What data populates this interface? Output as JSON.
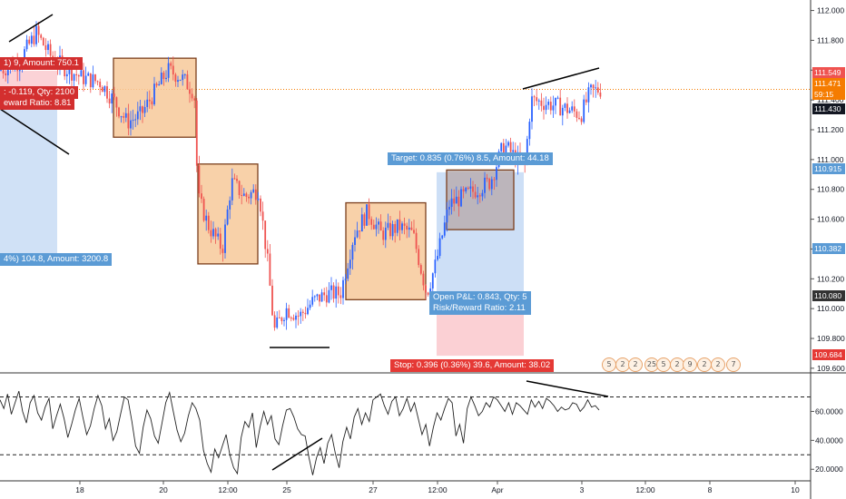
{
  "chart_data": [
    {
      "type": "candlestick",
      "symbol_context": "price panel",
      "y_axis_ticks": [
        "112.000",
        "111.800",
        "111.600",
        "111.400",
        "111.200",
        "111.000",
        "110.800",
        "110.600",
        "110.400",
        "110.200",
        "110.000",
        "109.800",
        "109.600"
      ],
      "ylim": [
        109.575,
        112.04
      ],
      "price_badges": [
        {
          "value": "111.549",
          "color": "#ef5350"
        },
        {
          "value": "111.471",
          "color": "#f57c00"
        },
        {
          "value": "59:15",
          "color": "#f57c00"
        },
        {
          "value": "111.430",
          "color": "#131722"
        },
        {
          "value": "110.915",
          "color": "#5b9bd5"
        },
        {
          "value": "110.382",
          "color": "#5b9bd5"
        },
        {
          "value": "110.080",
          "color": "#333333"
        },
        {
          "value": "109.684",
          "color": "#e53935"
        }
      ],
      "current_price_line": 111.471,
      "trade_labels": {
        "top_left_1": "1) 9, Amount: 750.1",
        "top_left_2": ": -0.119, Qty: 2100",
        "top_left_3": "eward Ratio: 8.81",
        "left_lower": "4%) 104.8, Amount: 3200.8",
        "target": "Target: 0.835 (0.76%) 8.5, Amount: 44.18",
        "open_pnl": "Open P&L: 0.843, Qty: 5",
        "risk_reward": "Risk/Reward Ratio: 2.11",
        "stop": "Stop: 0.396 (0.36%) 39.6, Amount: 38.02"
      },
      "long_position": {
        "entry": 110.08,
        "target": 110.915,
        "stop": 109.684
      },
      "colors": {
        "up": "#2962ff",
        "down": "#ef5350",
        "zone_fill": "#f7c99a",
        "zone_border": "#7b3f1d",
        "target_zone": "#c8dcf5",
        "stop_zone": "#fbcdd2"
      },
      "consolidation_boxes": [
        {
          "x_start": "Mar 19 12:00",
          "x_end": "Mar 20 18:00",
          "y_top": 111.68,
          "y_bottom": 111.15
        },
        {
          "x_start": "Mar 21 00:00",
          "x_end": "Mar 22 00:00",
          "y_top": 110.97,
          "y_bottom": 110.3
        },
        {
          "x_start": "Mar 26 12:00",
          "x_end": "Mar 27 12:00",
          "y_top": 110.71,
          "y_bottom": 110.06
        },
        {
          "x_start": "Mar 28 12:00",
          "x_end": "Mar 29 12:00",
          "y_top": 110.93,
          "y_bottom": 110.53
        }
      ],
      "trend_lines": [
        {
          "from": [
            "Mar 15 18:00",
            111.88
          ],
          "to": [
            "Mar 16 12:00",
            111.99
          ]
        },
        {
          "from": [
            "Mar 14 18:00",
            111.28
          ],
          "to": [
            "Mar 16 18:00",
            110.99
          ]
        },
        {
          "from": [
            "Mar 24 18:00",
            109.75
          ],
          "to": [
            "Mar 25 18:00",
            109.76
          ]
        },
        {
          "from": [
            "Apr 1 12:00",
            111.43
          ],
          "to": [
            "Apr 3 12:00",
            111.58
          ]
        }
      ]
    },
    {
      "type": "line",
      "symbol_context": "oscillator panel (RSI)",
      "y_axis_ticks": [
        "60.0000",
        "40.0000",
        "20.0000"
      ],
      "ylim": [
        12,
        86
      ],
      "levels": [
        70,
        30
      ],
      "x_tick_labels": [
        "18",
        "20",
        "12:00",
        "25",
        "27",
        "12:00",
        "Apr",
        "3",
        "12:00",
        "8",
        "10"
      ],
      "series": [
        {
          "values": [
            68,
            62,
            72,
            58,
            66,
            74,
            60,
            52,
            66,
            71,
            59,
            54,
            63,
            69,
            48,
            57,
            65,
            55,
            42,
            51,
            61,
            69,
            56,
            44,
            50,
            62,
            71,
            64,
            48,
            55,
            40,
            46,
            58,
            70,
            68,
            53,
            36,
            31,
            49,
            61,
            55,
            43,
            38,
            52,
            66,
            73,
            60,
            47,
            39,
            45,
            57,
            66,
            62,
            54,
            33,
            24,
            18,
            34,
            28,
            36,
            44,
            30,
            21,
            17,
            42,
            53,
            49,
            59,
            35,
            49,
            60,
            51,
            57,
            41,
            37,
            50,
            61,
            62,
            56,
            48,
            44,
            43,
            28,
            16,
            28,
            35,
            24,
            38,
            44,
            31,
            21,
            39,
            49,
            41,
            56,
            62,
            51,
            59,
            53,
            68,
            70,
            72,
            64,
            58,
            67,
            70,
            57,
            62,
            69,
            60,
            66,
            55,
            44,
            51,
            36,
            49,
            59,
            54,
            62,
            69,
            66,
            43,
            51,
            38,
            62,
            70,
            64,
            57,
            60,
            66,
            63,
            70,
            68,
            64,
            60,
            66,
            58,
            66,
            64,
            61,
            58,
            68,
            63,
            67,
            62,
            69,
            67,
            64,
            60,
            63,
            61,
            62,
            66,
            65,
            60,
            63,
            68,
            63,
            64,
            61
          ]
        }
      ],
      "trend_lines": [
        {
          "from": [
            "Mar 24 12:00",
            19
          ],
          "to": [
            "Mar 25 18:00",
            44
          ]
        },
        {
          "from": [
            "Apr 1 12:00",
            74
          ],
          "to": [
            "Apr 3 18:00",
            64
          ]
        }
      ]
    }
  ],
  "event_icons": [
    {
      "label": "5"
    },
    {
      "label": "2"
    },
    {
      "label": "2"
    },
    {
      "label": "25"
    },
    {
      "label": "5"
    },
    {
      "label": "2"
    },
    {
      "label": "9"
    },
    {
      "label": "2"
    },
    {
      "label": "2"
    },
    {
      "label": "7"
    }
  ]
}
